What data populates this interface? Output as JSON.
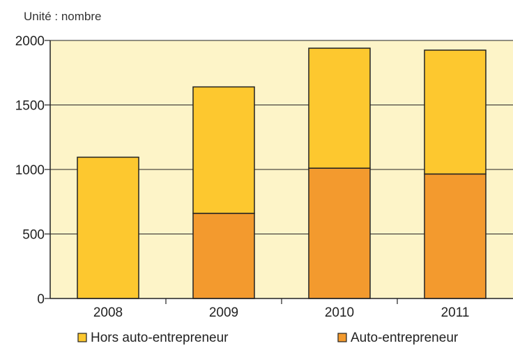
{
  "chart_data": {
    "type": "bar",
    "stacked": true,
    "unit_label": "Unité : nombre",
    "categories": [
      "2008",
      "2009",
      "2010",
      "2011"
    ],
    "series": [
      {
        "name": "Auto-entrepreneur",
        "color": "#f39a2e",
        "values": [
          0,
          660,
          1010,
          965
        ]
      },
      {
        "name": "Hors auto-entrepreneur",
        "color": "#fdc82f",
        "values": [
          1095,
          980,
          930,
          960
        ]
      }
    ],
    "ylim": [
      0,
      2000
    ],
    "yticks": [
      0,
      500,
      1000,
      1500,
      2000
    ],
    "grid": true,
    "plot_background": "#fdf4c8",
    "legend": [
      {
        "label": "Hors auto-entrepreneur",
        "color": "#fdc82f"
      },
      {
        "label": "Auto-entrepreneur",
        "color": "#f39a2e"
      }
    ],
    "legend_position": "bottom"
  }
}
